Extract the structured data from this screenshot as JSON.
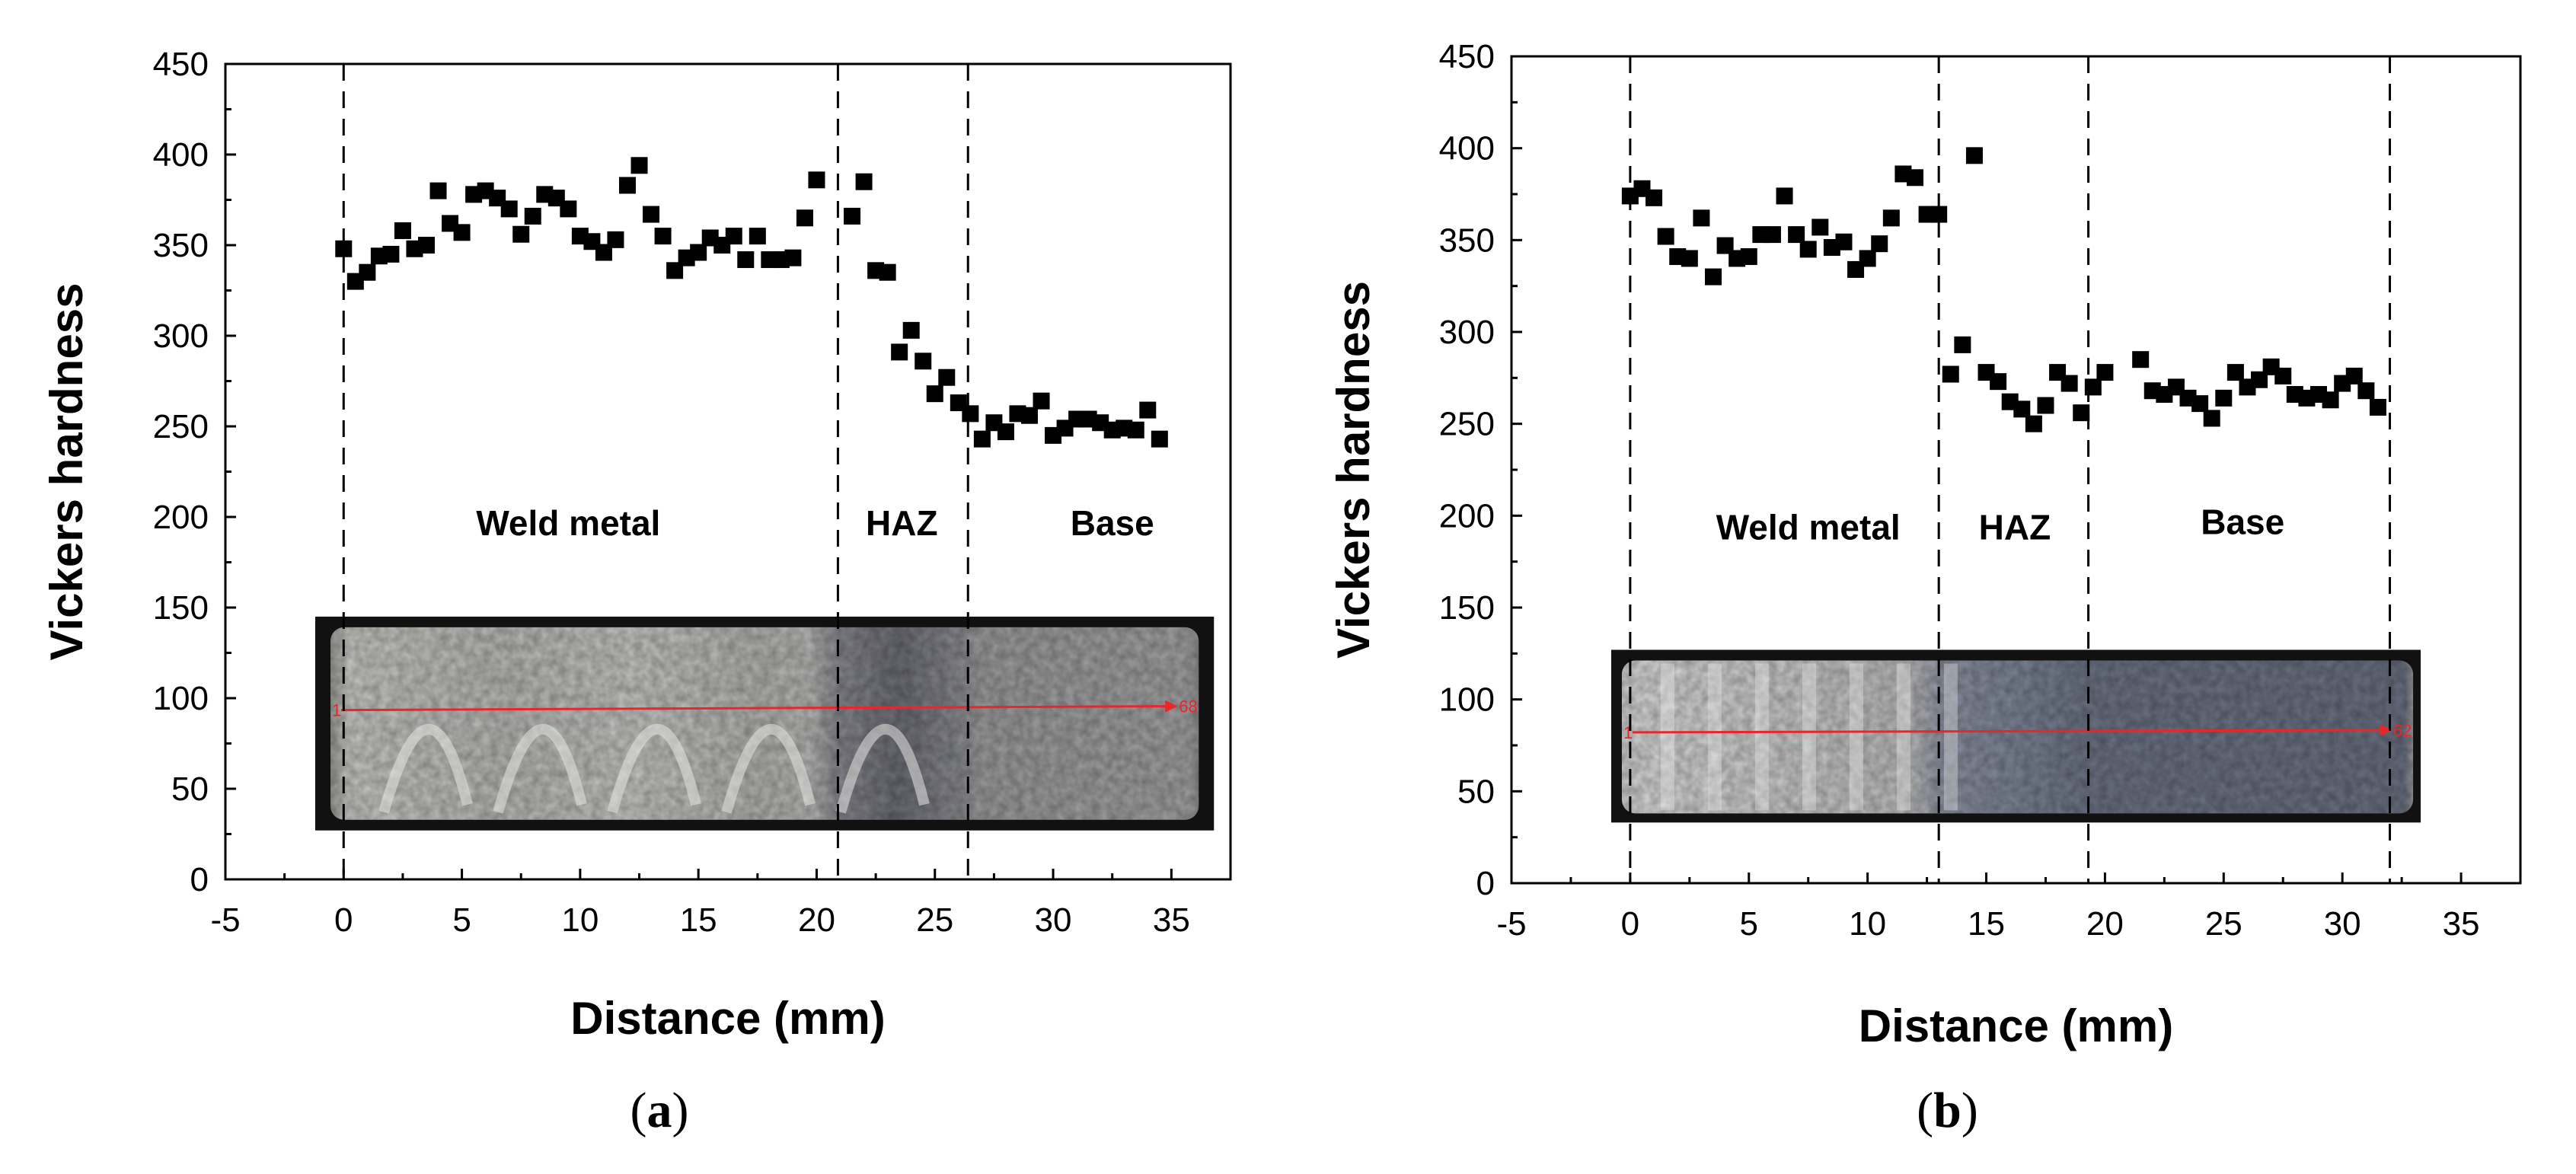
{
  "chart_data": [
    {
      "type": "scatter",
      "panel_label": "a",
      "xlabel": "Distance (mm)",
      "ylabel": "Vickers hardness",
      "xlim": [
        -5,
        37.5
      ],
      "ylim": [
        0,
        450
      ],
      "x_ticks": [
        "-5",
        "0",
        "5",
        "10",
        "15",
        "20",
        "25",
        "30",
        "35"
      ],
      "y_ticks": [
        "0",
        "50",
        "100",
        "150",
        "200",
        "250",
        "300",
        "350",
        "400",
        "450"
      ],
      "boundaries": [
        0,
        20.9,
        26.4
      ],
      "regions": [
        {
          "label": "Weld metal",
          "x": 9.5,
          "y": 190
        },
        {
          "label": "HAZ",
          "x": 23.6,
          "y": 190
        },
        {
          "label": "Base",
          "x": 32.5,
          "y": 190
        }
      ],
      "inset": {
        "x_range": [
          -1.2,
          36.8
        ],
        "y_range": [
          27,
          145
        ],
        "point_start": "1",
        "point_end": "68",
        "type": "a"
      },
      "series": [
        {
          "name": "Vickers hardness",
          "points": [
            [
              0,
              348
            ],
            [
              0.5,
              330
            ],
            [
              1,
              335
            ],
            [
              1.5,
              344
            ],
            [
              2,
              345
            ],
            [
              2.5,
              358
            ],
            [
              3,
              348
            ],
            [
              3.5,
              350
            ],
            [
              4,
              380
            ],
            [
              4.5,
              362
            ],
            [
              5,
              357
            ],
            [
              5.5,
              378
            ],
            [
              6,
              380
            ],
            [
              6.5,
              376
            ],
            [
              7,
              370
            ],
            [
              7.5,
              356
            ],
            [
              8,
              366
            ],
            [
              8.5,
              378
            ],
            [
              9,
              376
            ],
            [
              9.5,
              370
            ],
            [
              10,
              355
            ],
            [
              10.5,
              352
            ],
            [
              11,
              346
            ],
            [
              11.5,
              353
            ],
            [
              12,
              383
            ],
            [
              12.5,
              394
            ],
            [
              13,
              367
            ],
            [
              13.5,
              355
            ],
            [
              14,
              336
            ],
            [
              14.5,
              343
            ],
            [
              15,
              346
            ],
            [
              15.5,
              354
            ],
            [
              16,
              350
            ],
            [
              16.5,
              355
            ],
            [
              17,
              342
            ],
            [
              17.5,
              355
            ],
            [
              18,
              342
            ],
            [
              18.5,
              342
            ],
            [
              19,
              343
            ],
            [
              19.5,
              365
            ],
            [
              20,
              386
            ],
            [
              21.5,
              366
            ],
            [
              22,
              385
            ],
            [
              22.5,
              336
            ],
            [
              23,
              335
            ],
            [
              23.5,
              291
            ],
            [
              24,
              303
            ],
            [
              24.5,
              286
            ],
            [
              25,
              268
            ],
            [
              25.5,
              277
            ],
            [
              26,
              263
            ],
            [
              26.5,
              257
            ],
            [
              27,
              243
            ],
            [
              27.5,
              252
            ],
            [
              28,
              247
            ],
            [
              28.5,
              257
            ],
            [
              29,
              256
            ],
            [
              29.5,
              264
            ],
            [
              30,
              245
            ],
            [
              30.5,
              249
            ],
            [
              31,
              254
            ],
            [
              31.5,
              254
            ],
            [
              32,
              252
            ],
            [
              32.5,
              248
            ],
            [
              33,
              249
            ],
            [
              33.5,
              248
            ],
            [
              34,
              259
            ],
            [
              34.5,
              243
            ]
          ]
        }
      ]
    },
    {
      "type": "scatter",
      "panel_label": "b",
      "xlabel": "Distance (mm)",
      "ylabel": "Vickers hardness",
      "xlim": [
        -5,
        37.5
      ],
      "ylim": [
        0,
        450
      ],
      "x_ticks": [
        "-5",
        "0",
        "5",
        "10",
        "15",
        "20",
        "25",
        "30",
        "35"
      ],
      "y_ticks": [
        "0",
        "50",
        "100",
        "150",
        "200",
        "250",
        "300",
        "350",
        "400",
        "450"
      ],
      "boundaries": [
        0,
        13,
        19.3,
        32
      ],
      "regions": [
        {
          "label": "Weld metal",
          "x": 7.5,
          "y": 187
        },
        {
          "label": "HAZ",
          "x": 16.2,
          "y": 187
        },
        {
          "label": "Base",
          "x": 25.8,
          "y": 190
        }
      ],
      "inset": {
        "x_range": [
          -0.8,
          33.3
        ],
        "y_range": [
          33,
          127
        ],
        "point_start": "1",
        "point_end": "62",
        "type": "b"
      },
      "series": [
        {
          "name": "Vickers hardness",
          "points": [
            [
              0,
              374
            ],
            [
              0.5,
              378
            ],
            [
              1,
              373
            ],
            [
              1.5,
              352
            ],
            [
              2,
              341
            ],
            [
              2.5,
              340
            ],
            [
              3,
              362
            ],
            [
              3.5,
              330
            ],
            [
              4,
              347
            ],
            [
              4.5,
              340
            ],
            [
              5,
              341
            ],
            [
              5.5,
              353
            ],
            [
              6,
              353
            ],
            [
              6.5,
              374
            ],
            [
              7,
              353
            ],
            [
              7.5,
              345
            ],
            [
              8,
              357
            ],
            [
              8.5,
              346
            ],
            [
              9,
              349
            ],
            [
              9.5,
              334
            ],
            [
              10,
              340
            ],
            [
              10.5,
              348
            ],
            [
              11,
              362
            ],
            [
              11.5,
              386
            ],
            [
              12,
              384
            ],
            [
              12.5,
              364
            ],
            [
              13,
              364
            ],
            [
              13.5,
              277
            ],
            [
              14,
              293
            ],
            [
              14.5,
              396
            ],
            [
              15,
              278
            ],
            [
              15.5,
              273
            ],
            [
              16,
              262
            ],
            [
              16.5,
              258
            ],
            [
              17,
              250
            ],
            [
              17.5,
              260
            ],
            [
              18,
              278
            ],
            [
              18.5,
              272
            ],
            [
              19,
              256
            ],
            [
              19.5,
              270
            ],
            [
              20,
              278
            ],
            [
              21.5,
              285
            ],
            [
              22,
              268
            ],
            [
              22.5,
              266
            ],
            [
              23,
              270
            ],
            [
              23.5,
              264
            ],
            [
              24,
              261
            ],
            [
              24.5,
              253
            ],
            [
              25,
              264
            ],
            [
              25.5,
              278
            ],
            [
              26,
              270
            ],
            [
              26.5,
              274
            ],
            [
              27,
              281
            ],
            [
              27.5,
              276
            ],
            [
              28,
              266
            ],
            [
              28.5,
              264
            ],
            [
              29,
              266
            ],
            [
              29.5,
              263
            ],
            [
              30,
              272
            ],
            [
              30.5,
              276
            ],
            [
              31,
              268
            ],
            [
              31.5,
              259
            ]
          ]
        }
      ]
    }
  ]
}
